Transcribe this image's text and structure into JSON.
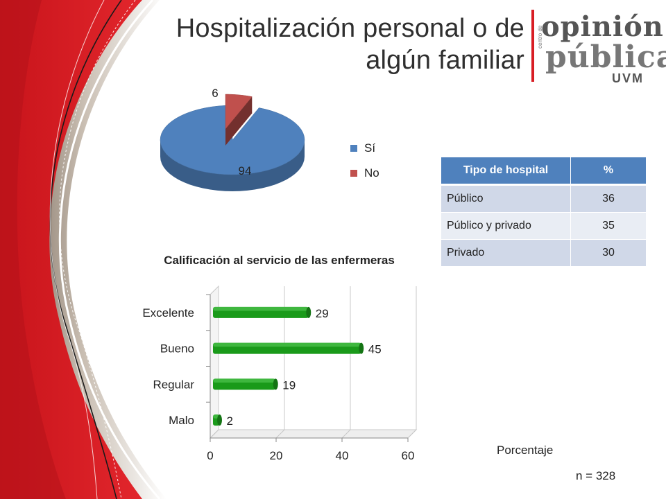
{
  "slide": {
    "title_line1": "Hospitalización personal o de",
    "title_line2": "algún familiar"
  },
  "logo": {
    "line1": "opinión",
    "line2": "pública",
    "line3": "UVM",
    "side_text": "centro de"
  },
  "theme": {
    "accent_red": "#d81e24",
    "pie_blue": "#4f81bd",
    "pie_red": "#c0504d",
    "bar_green": "#1a9a1a",
    "table_header": "#4f81bd"
  },
  "chart_data": [
    {
      "type": "pie",
      "categories": [
        "Sí",
        "No"
      ],
      "values": [
        94,
        6
      ],
      "colors": [
        "#4f81bd",
        "#c0504d"
      ],
      "legend": "right",
      "three_d": true,
      "exploded": "No"
    },
    {
      "type": "bar",
      "orientation": "horizontal",
      "title": "Calificación al servicio de las enfermeras",
      "categories": [
        "Excelente",
        "Bueno",
        "Regular",
        "Malo"
      ],
      "values": [
        29,
        45,
        19,
        2
      ],
      "xlim": [
        0,
        60
      ],
      "xticks": [
        0,
        20,
        40,
        60
      ],
      "grid": true,
      "three_d": true,
      "color": "#1a9a1a"
    },
    {
      "type": "table",
      "columns": [
        "Tipo de hospital",
        "%"
      ],
      "rows": [
        [
          "Público",
          "36"
        ],
        [
          "Público y privado",
          "35"
        ],
        [
          "Privado",
          "30"
        ]
      ]
    }
  ],
  "footer": {
    "unit_label": "Porcentaje",
    "sample": "n = 328"
  }
}
